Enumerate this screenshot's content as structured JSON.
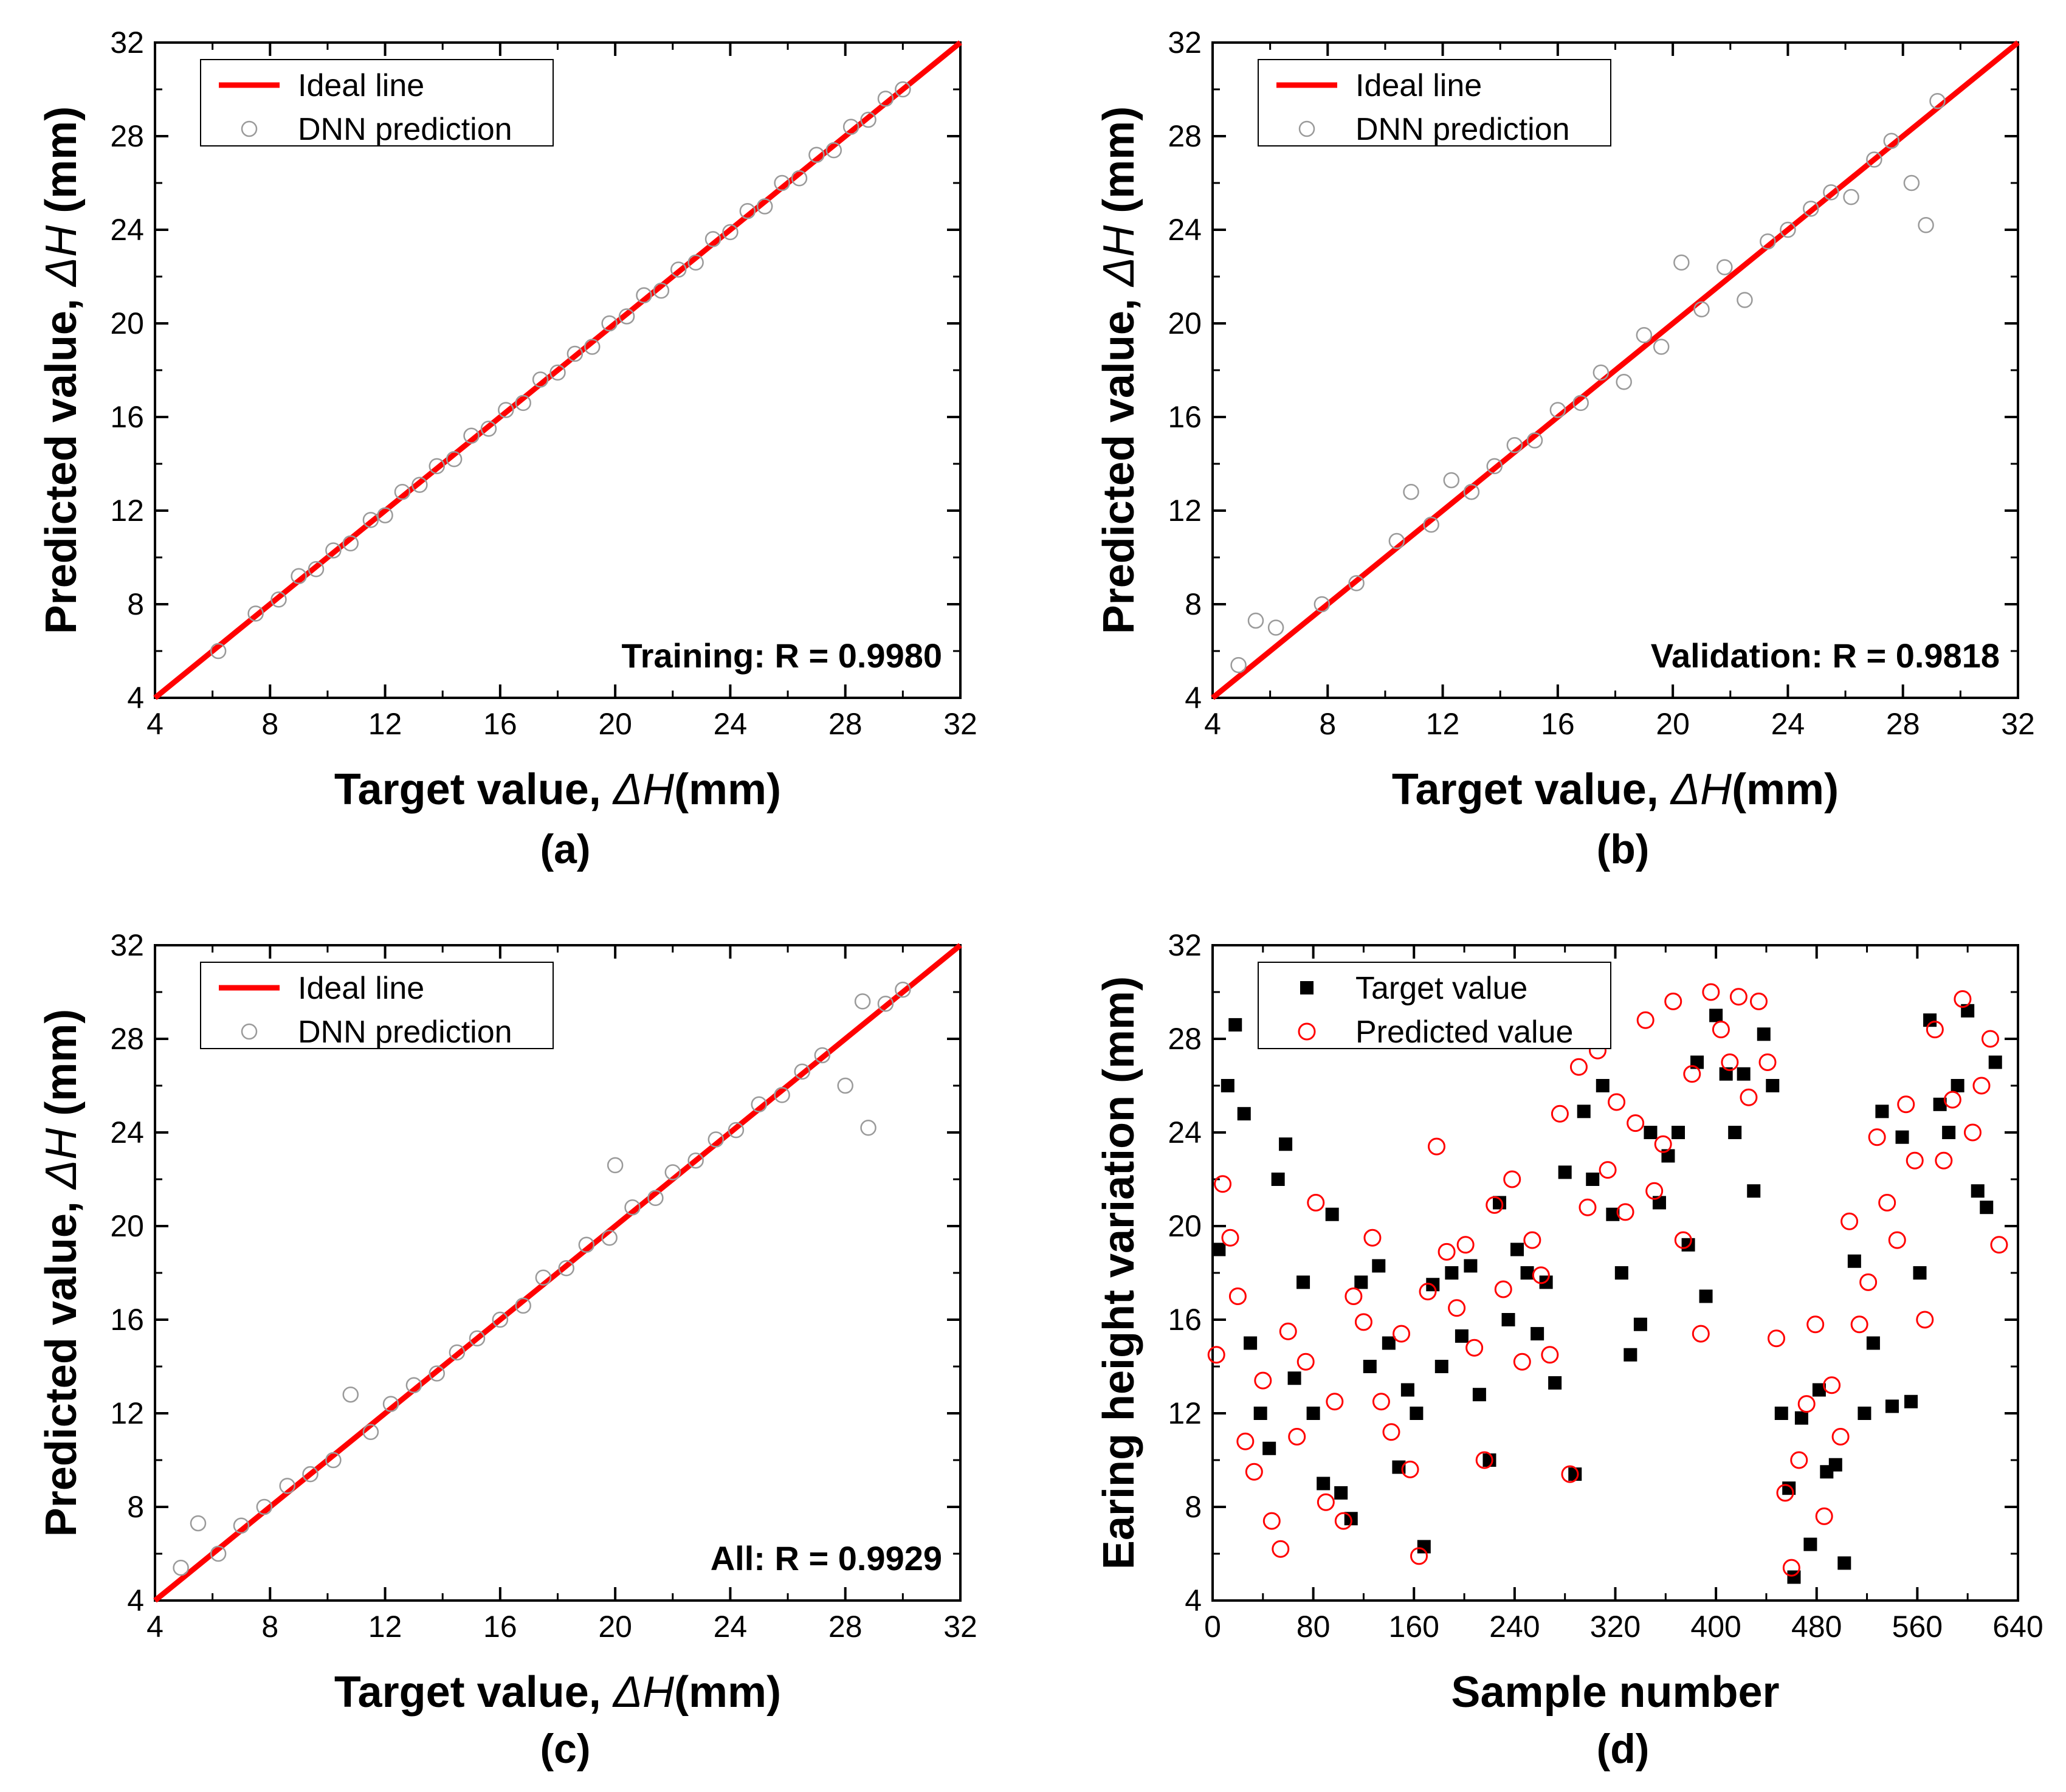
{
  "chart_data": [
    {
      "panel": "(a)",
      "type": "scatter",
      "title": "",
      "xlabel_text": "Target value,",
      "xlabel_symbol": "ΔH",
      "xlabel_unit": "(mm)",
      "ylabel_text": "Predicted value,",
      "ylabel_symbol": "ΔH",
      "ylabel_unit": "(mm)",
      "xlim": [
        4,
        32
      ],
      "ylim": [
        4,
        32
      ],
      "xticks": [
        "4",
        "8",
        "12",
        "16",
        "20",
        "24",
        "28",
        "32"
      ],
      "yticks": [
        "4",
        "8",
        "12",
        "16",
        "20",
        "24",
        "28",
        "32"
      ],
      "grid": false,
      "legend_position": "top-left",
      "legend": [
        "Ideal line",
        "DNN prediction"
      ],
      "annotation": "Training: R = 0.9980",
      "series": [
        {
          "name": "Ideal line",
          "kind": "line",
          "color": "#ff0000",
          "x": [
            4,
            32
          ],
          "y": [
            4,
            32
          ]
        },
        {
          "name": "DNN prediction",
          "kind": "scatter",
          "color": "#9a9a9a",
          "x": [
            6.2,
            7.5,
            8.3,
            9.0,
            9.6,
            10.2,
            10.8,
            11.5,
            12.0,
            12.6,
            13.2,
            13.8,
            14.4,
            15.0,
            15.6,
            16.2,
            16.8,
            17.4,
            18.0,
            18.6,
            19.2,
            19.8,
            20.4,
            21.0,
            21.6,
            22.2,
            22.8,
            23.4,
            24.0,
            24.6,
            25.2,
            25.8,
            26.4,
            27.0,
            27.6,
            28.2,
            28.8,
            29.4,
            30.0
          ],
          "y": [
            6.0,
            7.6,
            8.2,
            9.2,
            9.5,
            10.3,
            10.6,
            11.6,
            11.8,
            12.8,
            13.1,
            13.9,
            14.2,
            15.2,
            15.5,
            16.3,
            16.6,
            17.6,
            17.9,
            18.7,
            19.0,
            20.0,
            20.3,
            21.2,
            21.4,
            22.3,
            22.6,
            23.6,
            23.9,
            24.8,
            25.0,
            26.0,
            26.2,
            27.2,
            27.4,
            28.4,
            28.7,
            29.6,
            30.0
          ]
        }
      ]
    },
    {
      "panel": "(b)",
      "type": "scatter",
      "title": "",
      "xlabel_text": "Target value,",
      "xlabel_symbol": "ΔH",
      "xlabel_unit": "(mm)",
      "ylabel_text": "Predicted value,",
      "ylabel_symbol": "ΔH",
      "ylabel_unit": "(mm)",
      "xlim": [
        4,
        32
      ],
      "ylim": [
        4,
        32
      ],
      "xticks": [
        "4",
        "8",
        "12",
        "16",
        "20",
        "24",
        "28",
        "32"
      ],
      "yticks": [
        "4",
        "8",
        "12",
        "16",
        "20",
        "24",
        "28",
        "32"
      ],
      "grid": false,
      "legend_position": "top-left",
      "legend": [
        "Ideal line",
        "DNN prediction"
      ],
      "annotation": "Validation: R = 0.9818",
      "series": [
        {
          "name": "Ideal line",
          "kind": "line",
          "color": "#ff0000",
          "x": [
            4,
            32
          ],
          "y": [
            4,
            32
          ]
        },
        {
          "name": "DNN prediction",
          "kind": "scatter",
          "color": "#9a9a9a",
          "x": [
            4.9,
            5.5,
            6.2,
            7.8,
            9.0,
            10.4,
            10.9,
            11.6,
            12.3,
            13.0,
            13.8,
            14.5,
            15.2,
            16.0,
            16.8,
            17.5,
            18.3,
            19.0,
            19.6,
            20.3,
            21.0,
            21.8,
            22.5,
            23.3,
            24.0,
            24.8,
            25.5,
            26.2,
            27.0,
            27.6,
            28.3,
            28.8,
            29.2
          ],
          "y": [
            5.4,
            7.3,
            7.0,
            8.0,
            8.9,
            10.7,
            12.8,
            11.4,
            13.3,
            12.8,
            13.9,
            14.8,
            15.0,
            16.3,
            16.6,
            17.9,
            17.5,
            19.5,
            19.0,
            22.6,
            20.6,
            22.4,
            21.0,
            23.5,
            24.0,
            24.9,
            25.6,
            25.4,
            27.0,
            27.8,
            26.0,
            24.2,
            29.5
          ]
        }
      ]
    },
    {
      "panel": "(c)",
      "type": "scatter",
      "title": "",
      "xlabel_text": "Target value,",
      "xlabel_symbol": "ΔH",
      "xlabel_unit": "(mm)",
      "ylabel_text": "Predicted value,",
      "ylabel_symbol": "ΔH",
      "ylabel_unit": "(mm)",
      "xlim": [
        4,
        32
      ],
      "ylim": [
        4,
        32
      ],
      "xticks": [
        "4",
        "8",
        "12",
        "16",
        "20",
        "24",
        "28",
        "32"
      ],
      "yticks": [
        "4",
        "8",
        "12",
        "16",
        "20",
        "24",
        "28",
        "32"
      ],
      "grid": false,
      "legend_position": "top-left",
      "legend": [
        "Ideal line",
        "DNN prediction"
      ],
      "annotation": "All: R = 0.9929",
      "series": [
        {
          "name": "Ideal line",
          "kind": "line",
          "color": "#ff0000",
          "x": [
            4,
            32
          ],
          "y": [
            4,
            32
          ]
        },
        {
          "name": "DNN prediction",
          "kind": "scatter",
          "color": "#9a9a9a",
          "x": [
            4.9,
            5.5,
            6.2,
            7.0,
            7.8,
            8.6,
            9.4,
            10.2,
            10.8,
            11.5,
            12.2,
            13.0,
            13.8,
            14.5,
            15.2,
            16.0,
            16.8,
            17.5,
            18.3,
            19.0,
            19.8,
            20.0,
            20.6,
            21.4,
            22.0,
            22.8,
            23.5,
            24.2,
            25.0,
            25.8,
            26.5,
            27.2,
            28.0,
            28.6,
            28.8,
            29.4,
            30.0
          ],
          "y": [
            5.4,
            7.3,
            6.0,
            7.2,
            8.0,
            8.9,
            9.4,
            10.0,
            12.8,
            11.2,
            12.4,
            13.2,
            13.7,
            14.6,
            15.2,
            16.0,
            16.6,
            17.8,
            18.2,
            19.2,
            19.5,
            22.6,
            20.8,
            21.2,
            22.3,
            22.8,
            23.7,
            24.1,
            25.2,
            25.6,
            26.6,
            27.3,
            26.0,
            29.6,
            24.2,
            29.5,
            30.1
          ]
        }
      ]
    },
    {
      "panel": "(d)",
      "type": "scatter",
      "title": "",
      "xlabel": "Sample number",
      "ylabel": "Earing height variation (mm)",
      "xlim": [
        0,
        640
      ],
      "ylim": [
        4,
        32
      ],
      "xticks": [
        "0",
        "80",
        "160",
        "240",
        "320",
        "400",
        "480",
        "560",
        "640"
      ],
      "yticks": [
        "4",
        "8",
        "12",
        "16",
        "20",
        "24",
        "28",
        "32"
      ],
      "grid": false,
      "legend_position": "top-left",
      "legend": [
        "Target value",
        "Predicted value"
      ],
      "series": [
        {
          "name": "Target value",
          "kind": "square",
          "color": "#000000",
          "x": [
            5,
            12,
            18,
            25,
            30,
            38,
            45,
            52,
            58,
            65,
            72,
            80,
            88,
            95,
            102,
            110,
            118,
            125,
            132,
            140,
            148,
            155,
            162,
            168,
            175,
            182,
            190,
            198,
            205,
            212,
            220,
            228,
            235,
            242,
            250,
            258,
            265,
            272,
            280,
            288,
            295,
            302,
            310,
            318,
            325,
            332,
            340,
            348,
            355,
            362,
            370,
            378,
            385,
            392,
            400,
            408,
            415,
            422,
            430,
            438,
            445,
            452,
            458,
            462,
            468,
            475,
            482,
            488,
            495,
            502,
            510,
            518,
            525,
            532,
            540,
            548,
            555,
            562,
            570,
            578,
            585,
            592,
            600,
            608,
            615,
            622
          ],
          "y": [
            19.0,
            26.0,
            28.6,
            24.8,
            15.0,
            12.0,
            10.5,
            22.0,
            23.5,
            13.5,
            17.6,
            12.0,
            9.0,
            20.5,
            8.6,
            7.5,
            17.6,
            14.0,
            18.3,
            15.0,
            9.7,
            13.0,
            12.0,
            6.3,
            17.5,
            14.0,
            18.0,
            15.3,
            18.3,
            12.8,
            10.0,
            21.0,
            16.0,
            19.0,
            18.0,
            15.4,
            17.6,
            13.3,
            22.3,
            9.4,
            24.9,
            22.0,
            26.0,
            20.5,
            18.0,
            14.5,
            15.8,
            24.0,
            21.0,
            23.0,
            24.0,
            19.2,
            27.0,
            17.0,
            29.0,
            26.5,
            24.0,
            26.5,
            21.5,
            28.2,
            26.0,
            12.0,
            8.8,
            5.0,
            11.8,
            6.4,
            13.0,
            9.5,
            9.8,
            5.6,
            18.5,
            12.0,
            15.0,
            24.9,
            12.3,
            23.8,
            12.5,
            18.0,
            28.8,
            25.2,
            24.0,
            26.0,
            29.2,
            21.5,
            20.8,
            27.0
          ]
        },
        {
          "name": "Predicted value",
          "kind": "circle",
          "color": "#ff0000",
          "x": [
            3,
            8,
            14,
            20,
            26,
            33,
            40,
            47,
            54,
            60,
            67,
            74,
            82,
            90,
            97,
            104,
            112,
            120,
            127,
            134,
            142,
            150,
            157,
            164,
            171,
            178,
            186,
            194,
            201,
            208,
            216,
            224,
            231,
            238,
            246,
            254,
            261,
            268,
            276,
            284,
            291,
            298,
            306,
            314,
            321,
            328,
            336,
            344,
            351,
            358,
            366,
            374,
            381,
            388,
            396,
            404,
            411,
            418,
            426,
            434,
            441,
            448,
            455,
            460,
            466,
            472,
            479,
            486,
            492,
            499,
            506,
            514,
            521,
            528,
            536,
            544,
            551,
            558,
            566,
            574,
            581,
            588,
            596,
            604,
            611,
            618,
            625
          ],
          "y": [
            14.5,
            21.8,
            19.5,
            17.0,
            10.8,
            9.5,
            13.4,
            7.4,
            6.2,
            15.5,
            11.0,
            14.2,
            21.0,
            8.2,
            12.5,
            7.4,
            17.0,
            15.9,
            19.5,
            12.5,
            11.2,
            15.4,
            9.6,
            5.9,
            17.2,
            23.4,
            18.9,
            16.5,
            19.2,
            14.8,
            10.0,
            20.9,
            17.3,
            22.0,
            14.2,
            19.4,
            17.9,
            14.5,
            24.8,
            9.4,
            26.8,
            20.8,
            27.5,
            22.4,
            25.3,
            20.6,
            24.4,
            28.8,
            21.5,
            23.5,
            29.6,
            19.4,
            26.5,
            15.4,
            30.0,
            28.4,
            27.0,
            29.8,
            25.5,
            29.6,
            27.0,
            15.2,
            8.6,
            5.4,
            10.0,
            12.4,
            15.8,
            7.6,
            13.2,
            11.0,
            20.2,
            15.8,
            17.6,
            23.8,
            21.0,
            19.4,
            25.2,
            22.8,
            16.0,
            28.4,
            22.8,
            25.4,
            29.7,
            24.0,
            26.0,
            28.0,
            19.2
          ]
        }
      ]
    }
  ]
}
